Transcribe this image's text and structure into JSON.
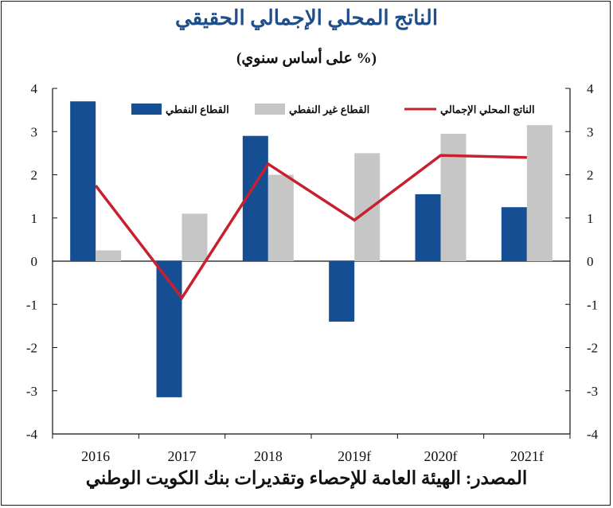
{
  "title": "الناتج المحلي الإجمالي الحقيقي",
  "subtitle": "(% على أساس سنوي)",
  "source": "المصدر: الهيئة العامة للإحصاء وتقديرات بنك الكويت الوطني",
  "colors": {
    "oil": "#164e94",
    "non_oil": "#c6c6c6",
    "gdp": "#c8202f",
    "title": "#1f4e8c"
  },
  "chart_data": {
    "type": "bar",
    "categories": [
      "2016",
      "2017",
      "2018",
      "2019f",
      "2020f",
      "2021f"
    ],
    "series": [
      {
        "name": "القطاع النفطي",
        "type": "bar",
        "color": "#164e94",
        "values": [
          3.7,
          -3.15,
          2.9,
          -1.4,
          1.55,
          1.25
        ]
      },
      {
        "name": "القطاع غير النفطي",
        "type": "bar",
        "color": "#c6c6c6",
        "values": [
          0.25,
          1.1,
          2.0,
          2.5,
          2.95,
          3.15
        ]
      },
      {
        "name": "الناتج المحلي الإجمالي",
        "type": "line",
        "color": "#c8202f",
        "values": [
          1.75,
          -0.85,
          2.25,
          0.95,
          2.45,
          2.4
        ]
      }
    ],
    "ylim": [
      -4,
      4
    ],
    "yticks": [
      "-4",
      "-3",
      "-2",
      "-1",
      "0",
      "1",
      "2",
      "3",
      "4"
    ],
    "legend_position": "top",
    "grid": false
  }
}
